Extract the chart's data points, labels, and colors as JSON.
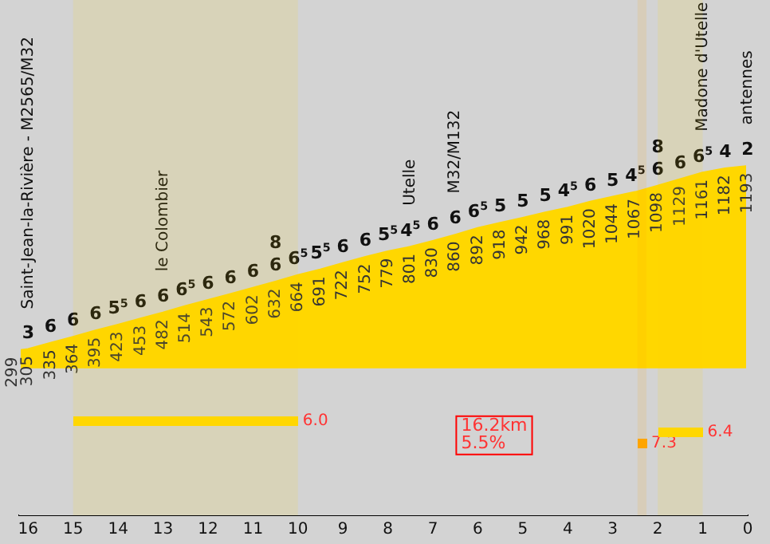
{
  "chart_data": {
    "type": "area",
    "x": [
      16.2,
      16,
      15.5,
      15,
      14.5,
      14,
      13.5,
      13,
      12.5,
      12,
      11.5,
      11,
      10.5,
      10,
      9.5,
      9,
      8.5,
      8,
      7.5,
      7,
      6.5,
      6,
      5.5,
      5,
      4.5,
      4,
      3.5,
      3,
      2.5,
      2,
      1.5,
      1,
      0.5,
      0
    ],
    "values": [
      299,
      305,
      335,
      364,
      395,
      423,
      453,
      482,
      514,
      543,
      572,
      602,
      632,
      664,
      691,
      722,
      752,
      779,
      801,
      830,
      860,
      892,
      918,
      942,
      968,
      991,
      1020,
      1044,
      1067,
      1098,
      1129,
      1161,
      1182,
      1193
    ],
    "color": "#ffd700",
    "xlim": [
      16.2,
      0
    ],
    "xticks": [
      16,
      15,
      14,
      13,
      12,
      11,
      10,
      9,
      8,
      7,
      6,
      5,
      4,
      3,
      2,
      1,
      0
    ],
    "data_labels": true,
    "grid": false,
    "legend": false,
    "marker": "none",
    "bands": [
      {
        "axis": "x",
        "from": 15,
        "to": 10,
        "label": "6.0",
        "color": "#ffd700"
      },
      {
        "axis": "x",
        "from": 2,
        "to": 1,
        "label": "6.4",
        "color": "#ffd700"
      },
      {
        "axis": "x",
        "from": 2.45,
        "to": 2.25,
        "label": "7.3",
        "color": "#ffa500"
      }
    ],
    "annotations": [
      {
        "text": "3",
        "x": 16,
        "y": 305
      },
      {
        "text": "6",
        "x": 15.5,
        "y": 335
      },
      {
        "text": "6",
        "x": 15,
        "y": 364
      },
      {
        "text": "6",
        "x": 14.5,
        "y": 395
      },
      {
        "text": "5$^{5}$",
        "x": 14,
        "y": 423
      },
      {
        "text": "6",
        "x": 13.5,
        "y": 453
      },
      {
        "text": "6",
        "x": 13,
        "y": 482
      },
      {
        "text": "6$^{5}$",
        "x": 12.5,
        "y": 514
      },
      {
        "text": "6",
        "x": 12,
        "y": 543
      },
      {
        "text": "6",
        "x": 11.5,
        "y": 572
      },
      {
        "text": "6",
        "x": 11,
        "y": 602
      },
      {
        "text": "6",
        "x": 10.5,
        "y": 632
      },
      {
        "text": "6$^{5}$",
        "x": 10,
        "y": 664
      },
      {
        "text": "5$^{5}$",
        "x": 9.5,
        "y": 691
      },
      {
        "text": "6",
        "x": 9,
        "y": 722
      },
      {
        "text": "6",
        "x": 8.5,
        "y": 752
      },
      {
        "text": "5$^{5}$",
        "x": 8,
        "y": 779
      },
      {
        "text": "4$^{5}$",
        "x": 7.5,
        "y": 801
      },
      {
        "text": "6",
        "x": 7,
        "y": 830
      },
      {
        "text": "6",
        "x": 6.5,
        "y": 860
      },
      {
        "text": "6$^{5}$",
        "x": 6,
        "y": 892
      },
      {
        "text": "5",
        "x": 5.5,
        "y": 918
      },
      {
        "text": "5",
        "x": 5,
        "y": 942
      },
      {
        "text": "5",
        "x": 4.5,
        "y": 968
      },
      {
        "text": "4$^{5}$",
        "x": 4,
        "y": 991
      },
      {
        "text": "6",
        "x": 3.5,
        "y": 1020
      },
      {
        "text": "5",
        "x": 3,
        "y": 1044
      },
      {
        "text": "4$^{5}$",
        "x": 2.5,
        "y": 1067
      },
      {
        "text": "6",
        "x": 2,
        "y": 1098
      },
      {
        "text": "6",
        "x": 1.5,
        "y": 1129
      },
      {
        "text": "6$^{5}$",
        "x": 1,
        "y": 1161
      },
      {
        "text": "4",
        "x": 0.5,
        "y": 1182
      },
      {
        "text": "2",
        "x": 0,
        "y": 1193
      },
      {
        "text": "8",
        "x": 10.5,
        "y": 632
      },
      {
        "text": "8",
        "x": 2,
        "y": 1098
      },
      {
        "text": "Saint-Jean-la-Rivière - M2565/M32",
        "x": 16.2,
        "y": 299
      },
      {
        "text": "le Colombier",
        "x": 13,
        "y": 482
      },
      {
        "text": "Utelle",
        "x": 7.5,
        "y": 801
      },
      {
        "text": "M32/M132",
        "x": 6.5,
        "y": 860
      },
      {
        "text": "Madone d'Utelle",
        "x": 1,
        "y": 1161
      },
      {
        "text": "antennes",
        "x": 0,
        "y": 1193
      },
      "16.2km",
      "5.5%"
    ]
  }
}
